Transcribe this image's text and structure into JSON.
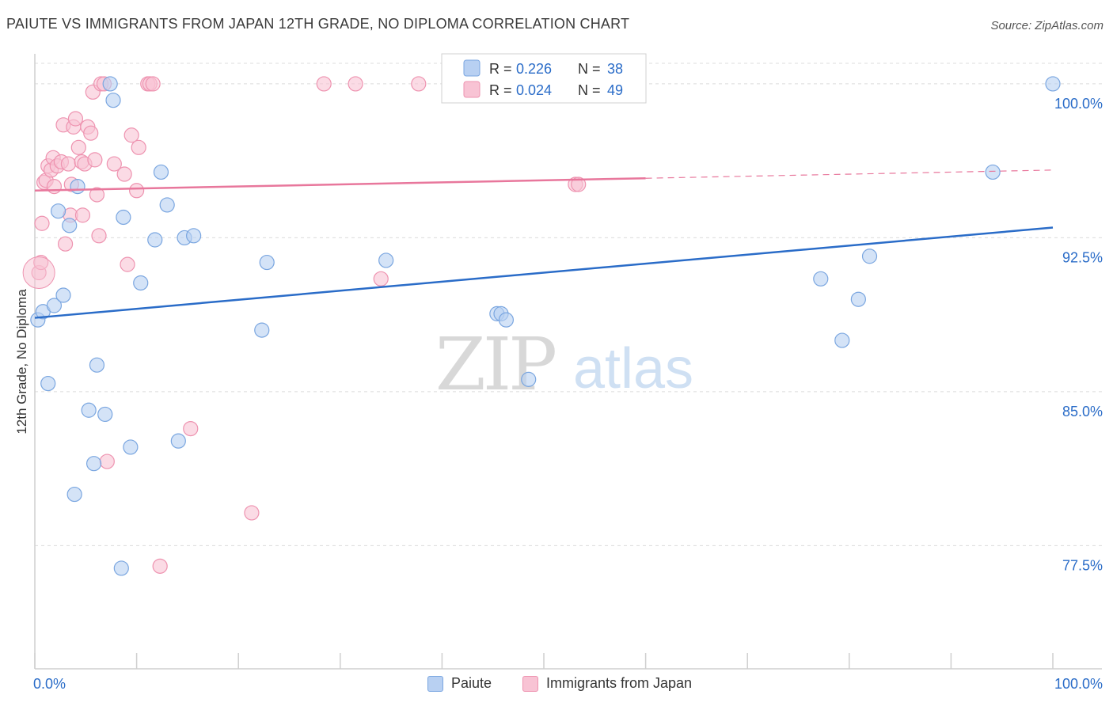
{
  "header": {
    "title": "PAIUTE VS IMMIGRANTS FROM JAPAN 12TH GRADE, NO DIPLOMA CORRELATION CHART",
    "source": "Source: ZipAtlas.com"
  },
  "watermark": {
    "zip": "ZIP",
    "atlas": "atlas"
  },
  "colors": {
    "paiute_fill": "#b8d0f2",
    "paiute_stroke": "#7aa6e0",
    "paiute_line": "#2a6cc8",
    "japan_fill": "#f8c3d4",
    "japan_stroke": "#ee93b0",
    "japan_line": "#e8779c",
    "value_text": "#2a6cc8",
    "grid": "#dcdcdc"
  },
  "stats_legend": [
    {
      "r_label": "R = ",
      "r_value": "0.226",
      "n_label": "N = ",
      "n_value": "38"
    },
    {
      "r_label": "R = ",
      "r_value": "0.024",
      "n_label": "N = ",
      "n_value": "49"
    }
  ],
  "chart_data": {
    "type": "scatter",
    "title": "PAIUTE VS IMMIGRANTS FROM JAPAN 12TH GRADE, NO DIPLOMA CORRELATION CHART",
    "xlabel": "",
    "ylabel": "12th Grade, No Diploma",
    "xlim": [
      0,
      100
    ],
    "ylim": [
      71.5,
      101
    ],
    "x_tick_labels": [
      "0.0%",
      "100.0%"
    ],
    "y_ticks": [
      77.5,
      85.0,
      92.5,
      100.0
    ],
    "y_tick_labels": [
      "77.5%",
      "85.0%",
      "92.5%",
      "100.0%"
    ],
    "grid": "horizontal dashed",
    "legend_position": "top-center",
    "series": [
      {
        "name": "Paiute",
        "r": 0.226,
        "n": 38,
        "trend": {
          "x": [
            0,
            100
          ],
          "y": [
            88.6,
            93.0
          ]
        },
        "points": [
          [
            0.3,
            88.5
          ],
          [
            0.8,
            88.9
          ],
          [
            1.3,
            85.4
          ],
          [
            1.9,
            89.2
          ],
          [
            2.3,
            93.8
          ],
          [
            2.8,
            89.7
          ],
          [
            3.4,
            93.1
          ],
          [
            3.9,
            80.0
          ],
          [
            4.2,
            95.0
          ],
          [
            5.3,
            84.1
          ],
          [
            5.8,
            81.5
          ],
          [
            6.1,
            86.3
          ],
          [
            6.9,
            83.9
          ],
          [
            7.4,
            100.0
          ],
          [
            7.7,
            99.2
          ],
          [
            8.5,
            76.4
          ],
          [
            8.7,
            93.5
          ],
          [
            9.4,
            82.3
          ],
          [
            10.4,
            90.3
          ],
          [
            11.8,
            92.4
          ],
          [
            12.4,
            95.7
          ],
          [
            13.0,
            94.1
          ],
          [
            14.1,
            82.6
          ],
          [
            14.7,
            92.5
          ],
          [
            15.6,
            92.6
          ],
          [
            22.3,
            88.0
          ],
          [
            22.8,
            91.3
          ],
          [
            34.5,
            91.4
          ],
          [
            45.4,
            88.8
          ],
          [
            45.8,
            88.8
          ],
          [
            46.3,
            88.5
          ],
          [
            48.5,
            85.6
          ],
          [
            77.2,
            90.5
          ],
          [
            79.3,
            87.5
          ],
          [
            80.9,
            89.5
          ],
          [
            82.0,
            91.6
          ],
          [
            94.1,
            95.7
          ],
          [
            100.0,
            100.0
          ]
        ]
      },
      {
        "name": "Immigrants from Japan",
        "r": 0.024,
        "n": 49,
        "trend": {
          "x": [
            0,
            60
          ],
          "y": [
            94.8,
            95.4
          ]
        },
        "trend_dashed": {
          "x": [
            60,
            100
          ],
          "y": [
            95.4,
            95.8
          ]
        },
        "points": [
          [
            0.4,
            90.8
          ],
          [
            0.6,
            91.3
          ],
          [
            0.7,
            93.2
          ],
          [
            0.9,
            95.2
          ],
          [
            1.1,
            95.3
          ],
          [
            1.3,
            96.0
          ],
          [
            1.6,
            95.8
          ],
          [
            1.8,
            96.4
          ],
          [
            1.9,
            95.0
          ],
          [
            2.2,
            96.0
          ],
          [
            2.6,
            96.2
          ],
          [
            2.8,
            98.0
          ],
          [
            3.0,
            92.2
          ],
          [
            3.3,
            96.1
          ],
          [
            3.5,
            93.6
          ],
          [
            3.6,
            95.1
          ],
          [
            3.8,
            97.9
          ],
          [
            4.0,
            98.3
          ],
          [
            4.3,
            96.9
          ],
          [
            4.6,
            96.2
          ],
          [
            4.7,
            93.6
          ],
          [
            4.9,
            96.1
          ],
          [
            5.2,
            97.9
          ],
          [
            5.5,
            97.6
          ],
          [
            5.7,
            99.6
          ],
          [
            5.9,
            96.3
          ],
          [
            6.1,
            94.6
          ],
          [
            6.3,
            92.6
          ],
          [
            6.5,
            100.0
          ],
          [
            6.8,
            100.0
          ],
          [
            7.1,
            81.6
          ],
          [
            7.8,
            96.1
          ],
          [
            8.8,
            95.6
          ],
          [
            9.1,
            91.2
          ],
          [
            9.5,
            97.5
          ],
          [
            10.0,
            94.8
          ],
          [
            10.2,
            96.9
          ],
          [
            11.1,
            100.0
          ],
          [
            11.3,
            100.0
          ],
          [
            11.6,
            100.0
          ],
          [
            12.3,
            76.5
          ],
          [
            15.3,
            83.2
          ],
          [
            21.3,
            79.1
          ],
          [
            28.4,
            100.0
          ],
          [
            31.5,
            100.0
          ],
          [
            34.0,
            90.5
          ],
          [
            37.7,
            100.0
          ],
          [
            53.1,
            95.1
          ],
          [
            53.4,
            95.1
          ]
        ]
      }
    ]
  },
  "legend_bottom": [
    {
      "label": "Paiute"
    },
    {
      "label": "Immigrants from Japan"
    }
  ]
}
